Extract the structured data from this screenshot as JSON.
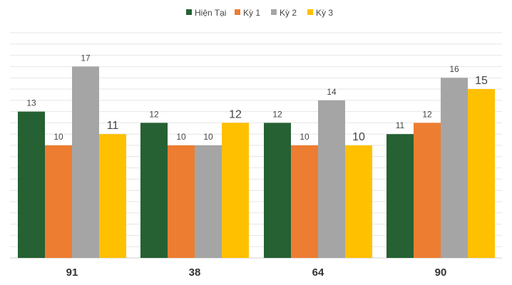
{
  "chart_data": {
    "type": "bar",
    "title": "",
    "xlabel": "",
    "ylabel": "",
    "categories": [
      "91",
      "38",
      "64",
      "90"
    ],
    "series": [
      {
        "name": "Hiện Tại",
        "color": "#256133",
        "values": [
          13,
          12,
          12,
          11
        ]
      },
      {
        "name": "Kỳ 1",
        "color": "#ED7D31",
        "values": [
          10,
          10,
          10,
          12
        ]
      },
      {
        "name": "Kỳ 2",
        "color": "#A5A5A5",
        "values": [
          17,
          10,
          14,
          16
        ]
      },
      {
        "name": "Kỳ 3",
        "color": "#FFC000",
        "values": [
          11,
          12,
          10,
          15
        ]
      }
    ],
    "ylim": [
      0,
      20
    ],
    "grid": true,
    "legend_position": "top-center"
  }
}
